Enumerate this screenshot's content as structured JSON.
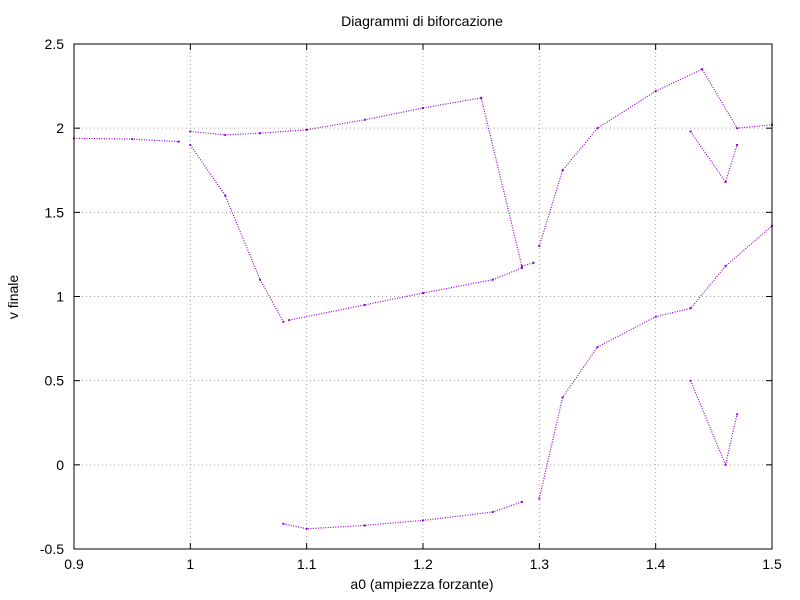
{
  "chart_data": {
    "type": "scatter",
    "title": "Diagrammi di biforcazione",
    "xlabel": "a0 (ampiezza forzante)",
    "ylabel": "v finale",
    "xlim": [
      0.9,
      1.5
    ],
    "ylim": [
      -0.5,
      2.5
    ],
    "x_ticks": [
      0.9,
      1.0,
      1.1,
      1.2,
      1.3,
      1.4,
      1.5
    ],
    "x_tick_labels": [
      "0.9",
      "1",
      "1.1",
      "1.2",
      "1.3",
      "1.4",
      "1.5"
    ],
    "y_ticks": [
      -0.5,
      0,
      0.5,
      1,
      1.5,
      2,
      2.5
    ],
    "y_tick_labels": [
      "-0.5",
      "0",
      "0.5",
      "1",
      "1.5",
      "2",
      "2.5"
    ],
    "grid": true,
    "grid_style": "dotted",
    "point_color": "#9400d3",
    "series": [
      {
        "branches": [
          {
            "x": [
              0.9,
              0.95,
              0.99
            ],
            "y": [
              1.94,
              1.935,
              1.92
            ]
          },
          {
            "x": [
              1.0,
              1.03,
              1.06,
              1.1,
              1.15,
              1.2,
              1.25,
              1.285,
              1.295
            ],
            "y": [
              1.98,
              1.96,
              1.97,
              1.99,
              2.05,
              2.12,
              2.18,
              1.18,
              1.2
            ]
          },
          {
            "x": [
              1.3,
              1.32,
              1.35,
              1.4,
              1.44,
              1.47,
              1.5
            ],
            "y": [
              1.3,
              1.75,
              2.0,
              2.22,
              2.35,
              2.0,
              2.02
            ]
          },
          {
            "x": [
              1.0,
              1.03,
              1.06,
              1.08
            ],
            "y": [
              1.9,
              1.6,
              1.1,
              0.85
            ]
          },
          {
            "x": [
              1.085,
              1.15,
              1.2,
              1.26,
              1.285
            ],
            "y": [
              0.86,
              0.95,
              1.02,
              1.1,
              1.17
            ]
          },
          {
            "x": [
              1.08,
              1.1,
              1.15,
              1.2,
              1.26,
              1.285
            ],
            "y": [
              -0.35,
              -0.38,
              -0.36,
              -0.33,
              -0.28,
              -0.22
            ]
          },
          {
            "x": [
              1.3,
              1.32,
              1.35,
              1.4,
              1.43,
              1.46,
              1.5
            ],
            "y": [
              -0.2,
              0.4,
              0.7,
              0.88,
              0.93,
              1.18,
              1.42
            ]
          },
          {
            "x": [
              1.43,
              1.46,
              1.47
            ],
            "y": [
              0.5,
              0.0,
              0.3
            ]
          },
          {
            "x": [
              1.43,
              1.46,
              1.47
            ],
            "y": [
              1.98,
              1.68,
              1.9
            ]
          }
        ]
      }
    ]
  }
}
